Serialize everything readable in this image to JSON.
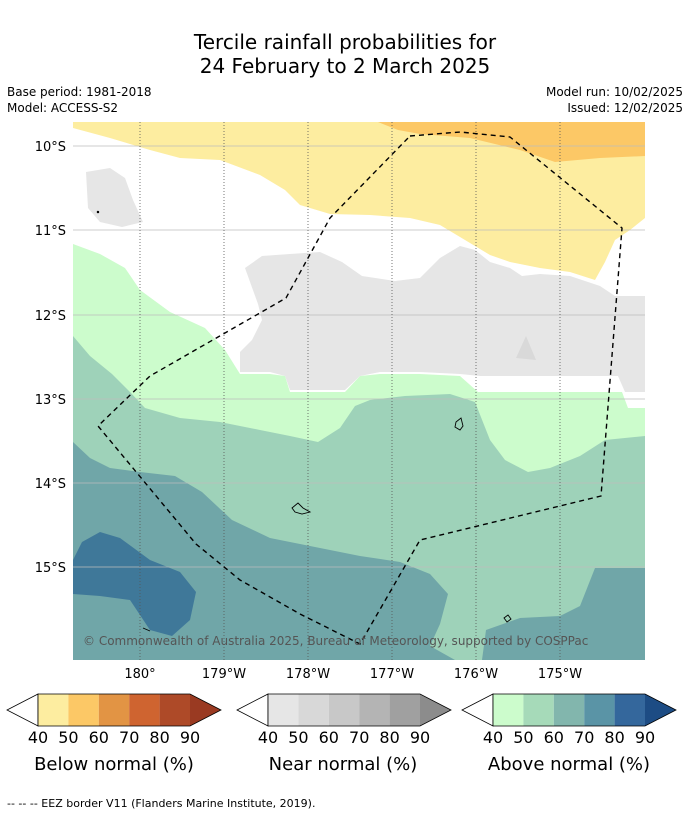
{
  "header": {
    "title_line1": "Tercile rainfall probabilities for",
    "title_line2": "24 February to 2 March 2025",
    "base_period": "Base period: 1981-2018",
    "model": "Model: ACCESS-S2",
    "model_run": "Model run: 10/02/2025",
    "issued": "Issued: 12/02/2025"
  },
  "map": {
    "lat_labels": [
      "10°S",
      "11°S",
      "12°S",
      "13°S",
      "14°S",
      "15°S"
    ],
    "lon_labels": [
      "180°",
      "179°W",
      "178°W",
      "177°W",
      "176°W",
      "175°W"
    ],
    "copyright": "© Commonwealth of Australia 2025, Bureau of Meteorology, supported by COSPPac",
    "categories": {
      "below_normal_40": "#fdeda0",
      "below_normal_50": "#fcc866",
      "near_normal_40": "#e6e6e6",
      "above_normal_40": "#ccfccc",
      "above_normal_50": "#9ed2b9",
      "above_normal_60": "#70a6a8",
      "above_normal_70": "#3f7899"
    }
  },
  "colorbars": [
    {
      "title": "Below normal (%)",
      "ticks": [
        "40",
        "50",
        "60",
        "70",
        "80",
        "90"
      ],
      "colors": [
        "#fdeda0",
        "#fcc866",
        "#e29444",
        "#cf6430",
        "#ae4a28",
        "#9a3a22"
      ]
    },
    {
      "title": "Near normal (%)",
      "ticks": [
        "40",
        "50",
        "60",
        "70",
        "80",
        "90"
      ],
      "colors": [
        "#e6e6e6",
        "#d8d8d8",
        "#c8c8c8",
        "#b4b4b4",
        "#a0a0a0",
        "#8c8c8c"
      ]
    },
    {
      "title": "Above normal (%)",
      "ticks": [
        "40",
        "50",
        "60",
        "70",
        "80",
        "90"
      ],
      "colors": [
        "#ccfccc",
        "#a6dab9",
        "#82b6ad",
        "#5a94a6",
        "#34679c",
        "#1d4c84"
      ]
    }
  ],
  "footer": {
    "legend_text": "--  --  -- EEZ border V11 (Flanders Marine Institute, 2019)."
  }
}
